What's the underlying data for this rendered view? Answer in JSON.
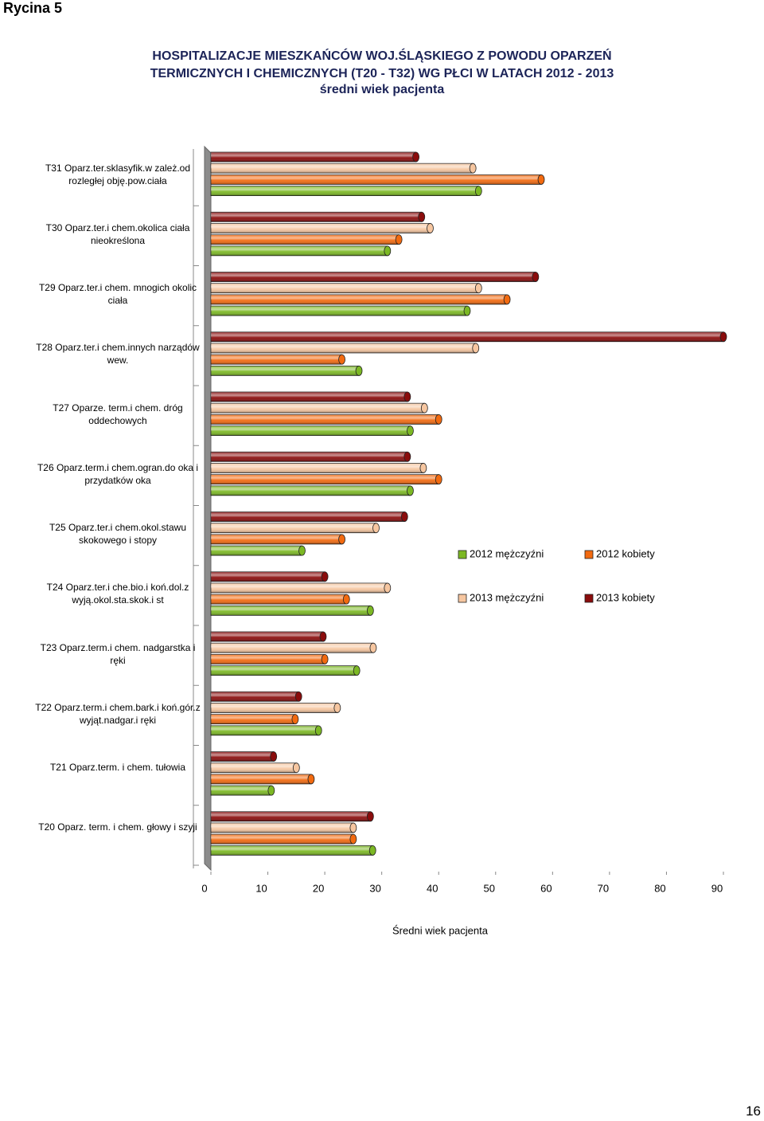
{
  "header": "Rycina 5",
  "page_number": "16",
  "chart_data": {
    "type": "bar",
    "orientation": "horizontal",
    "title": "HOSPITALIZACJE  MIESZKAŃCÓW WOJ.ŚLĄSKIEGO Z POWODU OPARZEŃ TERMICZNYCH  I CHEMICZNYCH (T20 - T32)  WG PŁCI W LATACH 2012  -  2013",
    "subtitle": "średni wiek pacjenta",
    "x_label": "Średni wiek pacjenta",
    "categories": [
      "T31 Oparz.ter.sklasyfik.w zależ.od rozległej obję.pow.ciała",
      "T30 Oparz.ter.i chem.okolica ciała nieokreślona",
      "T29 Oparz.ter.i chem. mnogich okolic ciała",
      "T28 Oparz.ter.i chem.innych narządów wew.",
      "T27 Oparze. term.i chem. dróg oddechowych",
      "T26 Oparz.term.i chem.ogran.do oka i przydatków oka",
      "T25 Oparz.ter.i chem.okol.stawu skokowego i stopy",
      "T24 Oparz.ter.i che.bio.i koń.dol.z wyją.okol.sta.skok.i st",
      "T23 Oparz.term.i chem. nadgarstka i ręki",
      "T22  Oparz.term.i chem.bark.i koń.gór.z wyjąt.nadgar.i ręki",
      "T21  Oparz.term. i chem. tułowia",
      "T20  Oparz. term. i chem. głowy i szyji"
    ],
    "series": [
      {
        "name": "2012 mężczyźni",
        "color": "#7cb824",
        "values": [
          47,
          31,
          45,
          26,
          35,
          35,
          16,
          28,
          25.6,
          18.9,
          10.6,
          28.4
        ]
      },
      {
        "name": "2012 kobiety",
        "color": "#f26a10",
        "values": [
          58,
          33,
          52,
          23,
          40,
          40,
          23,
          23.8,
          20,
          14.8,
          17.6,
          25
        ]
      },
      {
        "name": "2013 mężczyźni",
        "color": "#f6c6a0",
        "values": [
          46,
          38.5,
          47,
          46.5,
          37.5,
          37.3,
          29,
          31,
          28.5,
          22.2,
          15,
          25
        ]
      },
      {
        "name": "2013 kobiety",
        "color": "#8a0c0c",
        "values": [
          36,
          37,
          57,
          90,
          34.5,
          34.5,
          34,
          20,
          19.7,
          15.4,
          11,
          28
        ]
      }
    ],
    "xlim": [
      0,
      90
    ],
    "xticks": [
      0,
      10,
      20,
      30,
      40,
      50,
      60,
      70,
      80,
      90
    ],
    "legend": "right"
  }
}
